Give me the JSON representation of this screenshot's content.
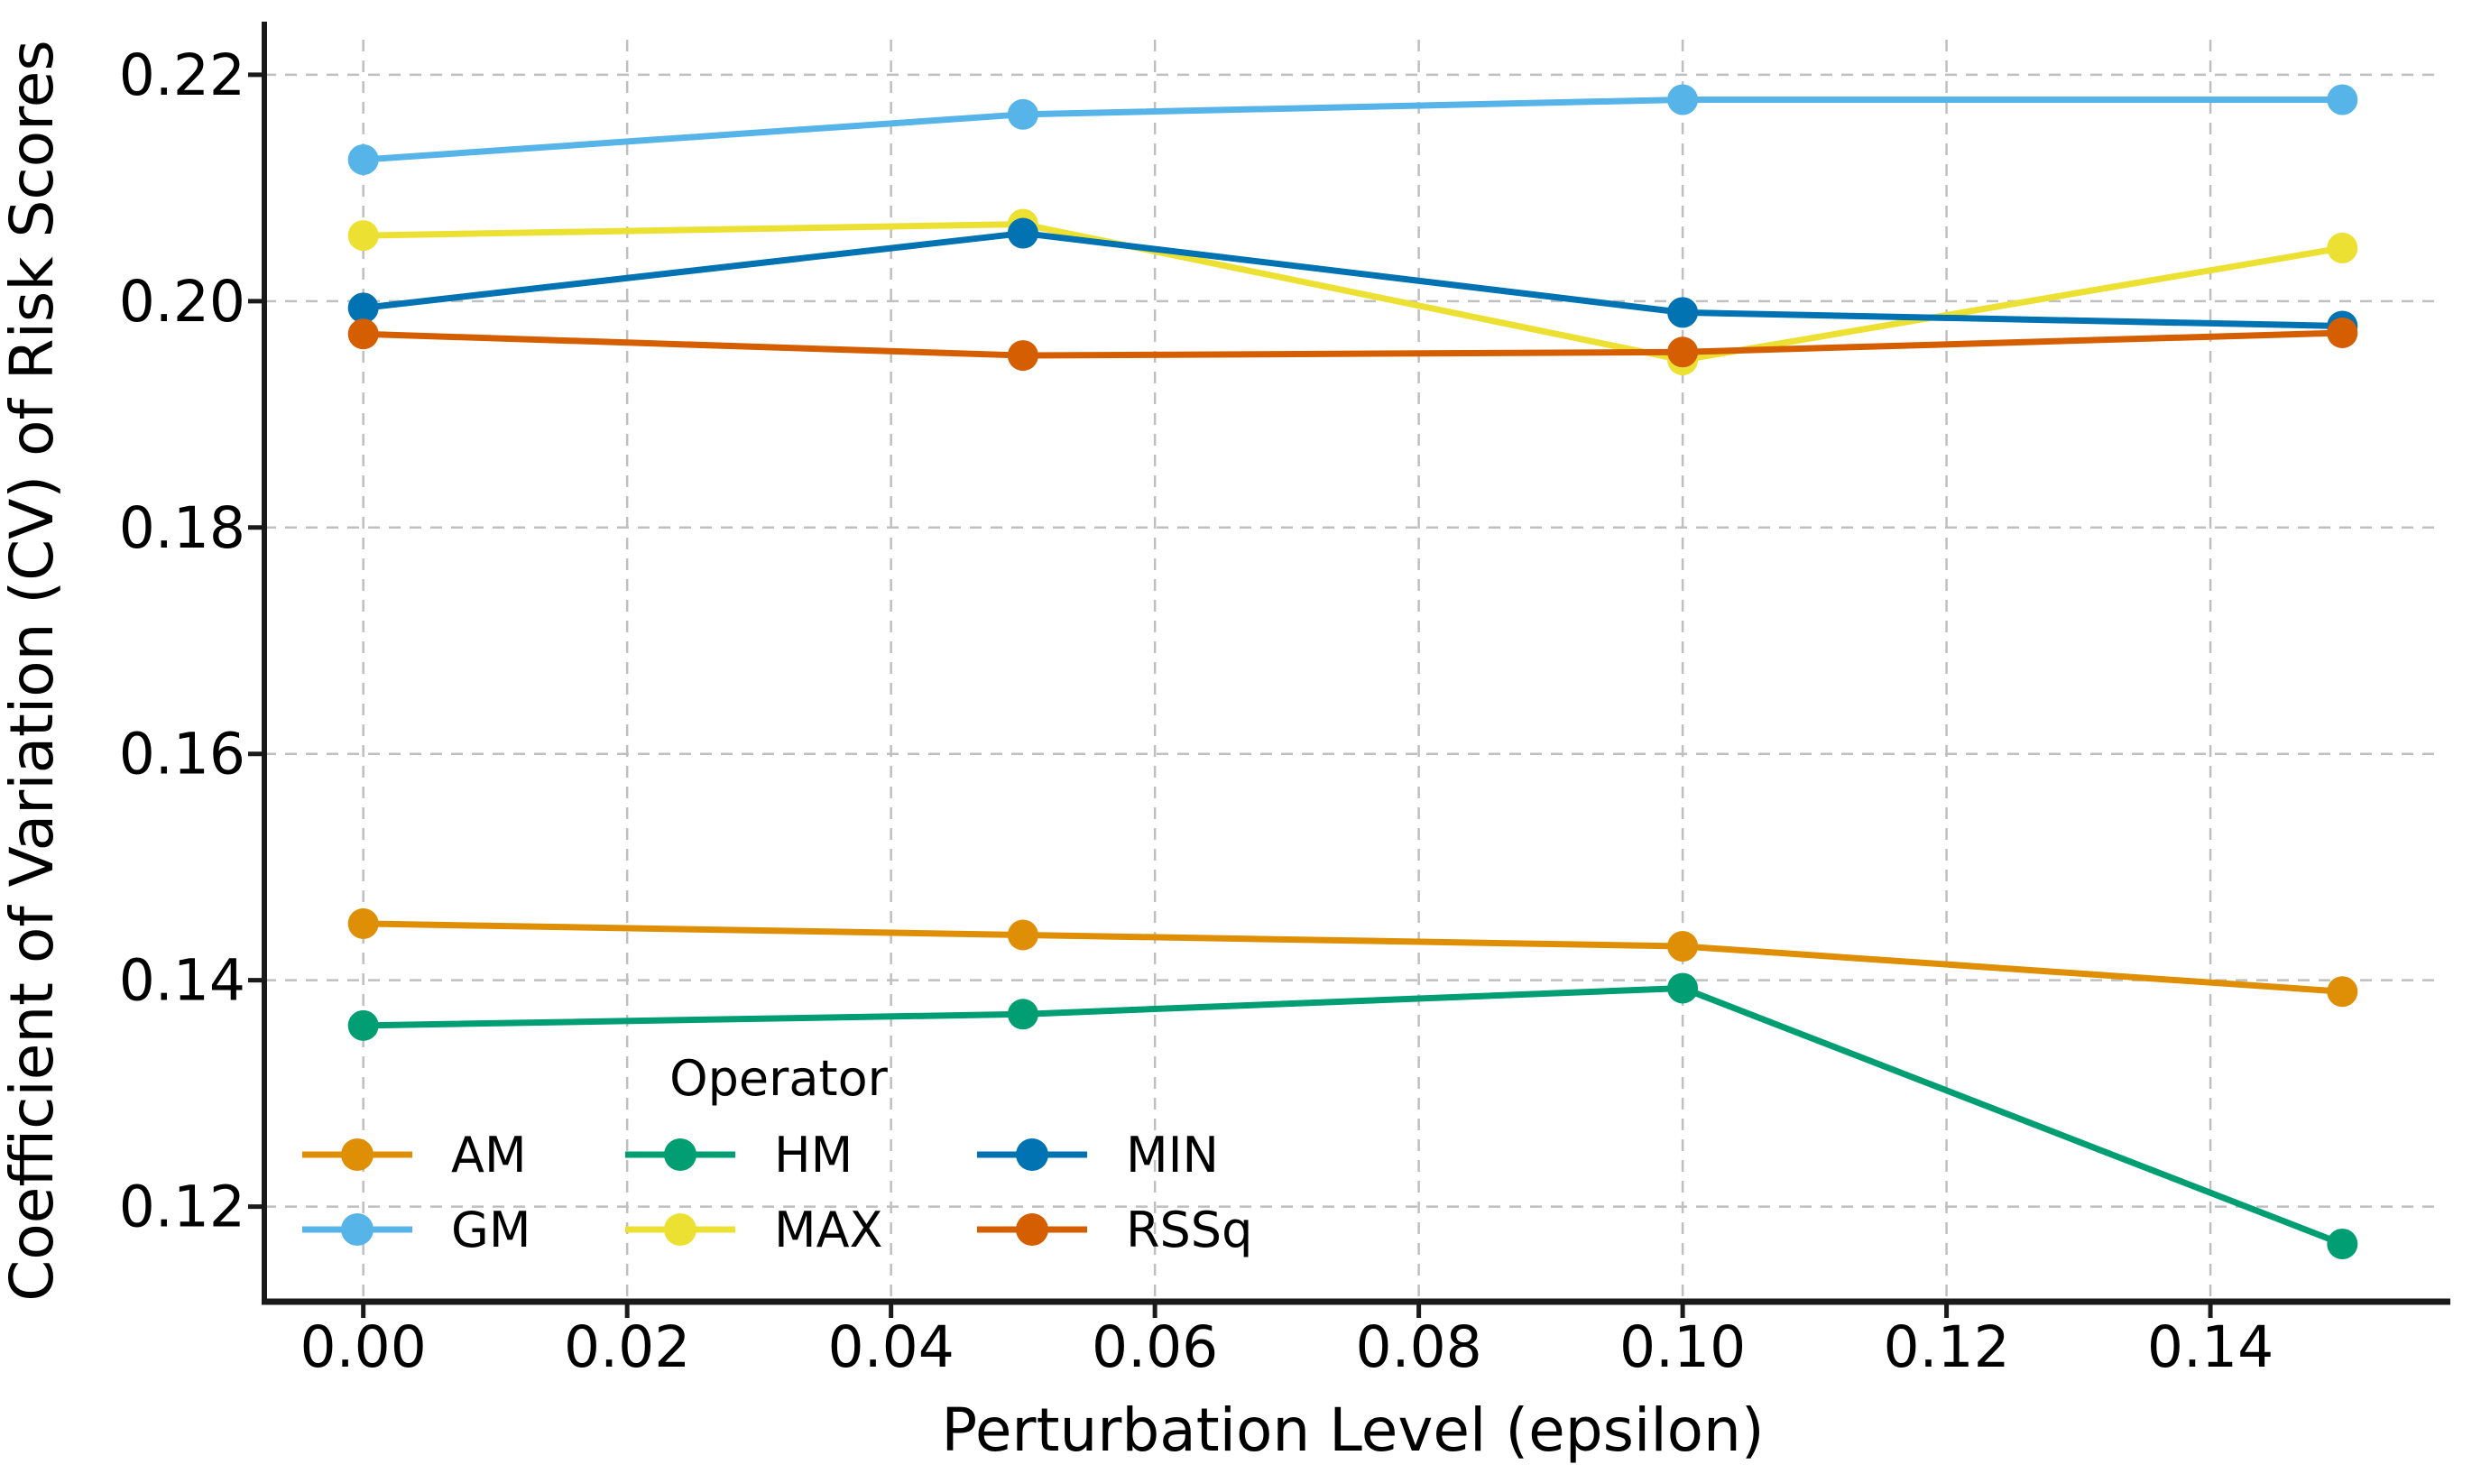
{
  "figure": {
    "background": "#ffffff",
    "grid_color": "#bfbfbf",
    "spine_color": "#1a1a1a",
    "text_color": "#000000"
  },
  "chart_data": {
    "type": "line",
    "title": "",
    "xlabel": "Perturbation Level (epsilon)",
    "ylabel": "Coefficient of Variation (CV) of Risk Scores",
    "x": [
      0.0,
      0.05,
      0.1,
      0.15
    ],
    "series": [
      {
        "name": "AM",
        "color": "#de8f05",
        "values": [
          0.145,
          0.144,
          0.143,
          0.139
        ]
      },
      {
        "name": "GM",
        "color": "#56b4e9",
        "values": [
          0.2125,
          0.2165,
          0.2178,
          0.2178
        ]
      },
      {
        "name": "HM",
        "color": "#029e73",
        "values": [
          0.136,
          0.137,
          0.1393,
          0.1167
        ]
      },
      {
        "name": "MAX",
        "color": "#ece133",
        "values": [
          0.2058,
          0.2068,
          0.1948,
          0.2047
        ]
      },
      {
        "name": "MIN",
        "color": "#0173b2",
        "values": [
          0.1994,
          0.206,
          0.199,
          0.1978
        ]
      },
      {
        "name": "RSSq",
        "color": "#d55e00",
        "values": [
          0.1971,
          0.1952,
          0.1955,
          0.1972
        ]
      }
    ],
    "x_ticks": [
      0.0,
      0.02,
      0.04,
      0.06,
      0.08,
      0.1,
      0.12,
      0.14
    ],
    "x_tick_labels": [
      "0.00",
      "0.02",
      "0.04",
      "0.06",
      "0.08",
      "0.10",
      "0.12",
      "0.14"
    ],
    "y_ticks": [
      0.12,
      0.14,
      0.16,
      0.18,
      0.2,
      0.22
    ],
    "y_tick_labels": [
      "0.12",
      "0.14",
      "0.16",
      "0.18",
      "0.20",
      "0.22"
    ],
    "xlim": [
      -0.0075,
      0.1575
    ],
    "ylim": [
      0.1116,
      0.2231
    ],
    "grid": true,
    "grid_style": "dashed",
    "legend": {
      "title": "Operator",
      "position": "lower-left",
      "frame": false,
      "columns": [
        [
          "AM",
          "GM"
        ],
        [
          "HM",
          "MAX"
        ],
        [
          "MIN",
          "RSSq"
        ]
      ]
    }
  }
}
